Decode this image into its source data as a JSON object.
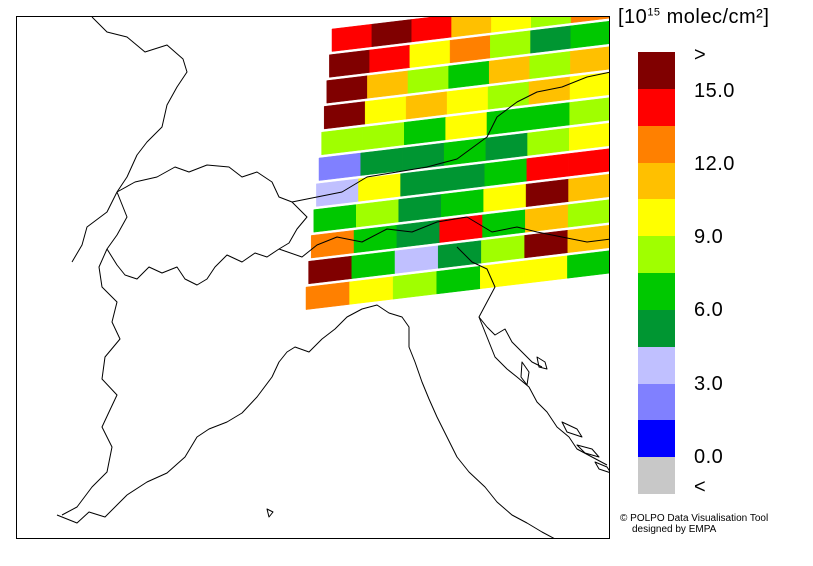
{
  "legend": {
    "unit_base": "[10",
    "unit_exp": "15",
    "unit_rest": " molec/cm²]",
    "colors": [
      "#800000",
      "#ff0000",
      "#ff8000",
      "#ffc000",
      "#ffff00",
      "#a0ff00",
      "#00c800",
      "#009632",
      "#c0c0ff",
      "#8080ff",
      "#0000ff",
      "#c8c8c8"
    ],
    "labels": [
      ">",
      "15.0",
      "12.0",
      "9.0",
      "6.0",
      "3.0",
      "0.0",
      "<"
    ]
  },
  "credit": {
    "line1": "© POLPO Data Visualisation Tool",
    "line2": "designed by EMPA"
  },
  "swaths": [
    [
      "#ff0000",
      "#800000",
      "#ff0000",
      "#ffc000",
      "#ffff00",
      "#a0ff00",
      "#ff8000"
    ],
    [
      "#800000",
      "#ff0000",
      "#ffff00",
      "#ff8000",
      "#a0ff00",
      "#009632",
      "#00c800"
    ],
    [
      "#800000",
      "#ffc000",
      "#a0ff00",
      "#00c800",
      "#ffc000",
      "#a0ff00",
      "#ffc000"
    ],
    [
      "#800000",
      "#ffff00",
      "#ffc000",
      "#ffff00",
      "#a0ff00",
      "#ffc000",
      "#ffff00"
    ],
    [
      "#a0ff00",
      "#a0ff00",
      "#00c800",
      "#ffff00",
      "#00c800",
      "#00c800",
      "#a0ff00"
    ],
    [
      "#8080ff",
      "#009632",
      "#009632",
      "#00c800",
      "#009632",
      "#a0ff00",
      "#ffff00"
    ],
    [
      "#c0c0ff",
      "#ffff00",
      "#009632",
      "#009632",
      "#00c800",
      "#ff0000",
      "#ff0000"
    ],
    [
      "#00c800",
      "#a0ff00",
      "#009632",
      "#00c800",
      "#ffff00",
      "#800000",
      "#ffc000"
    ],
    [
      "#ff8000",
      "#00c800",
      "#009632",
      "#ff0000",
      "#00c800",
      "#ffc000",
      "#a0ff00"
    ],
    [
      "#800000",
      "#00c800",
      "#c0c0ff",
      "#009632",
      "#a0ff00",
      "#800000",
      "#ffc000"
    ],
    [
      "#ff8000",
      "#ffff00",
      "#a0ff00",
      "#00c800",
      "#ffff00",
      "#ffff00",
      "#00c800"
    ]
  ]
}
